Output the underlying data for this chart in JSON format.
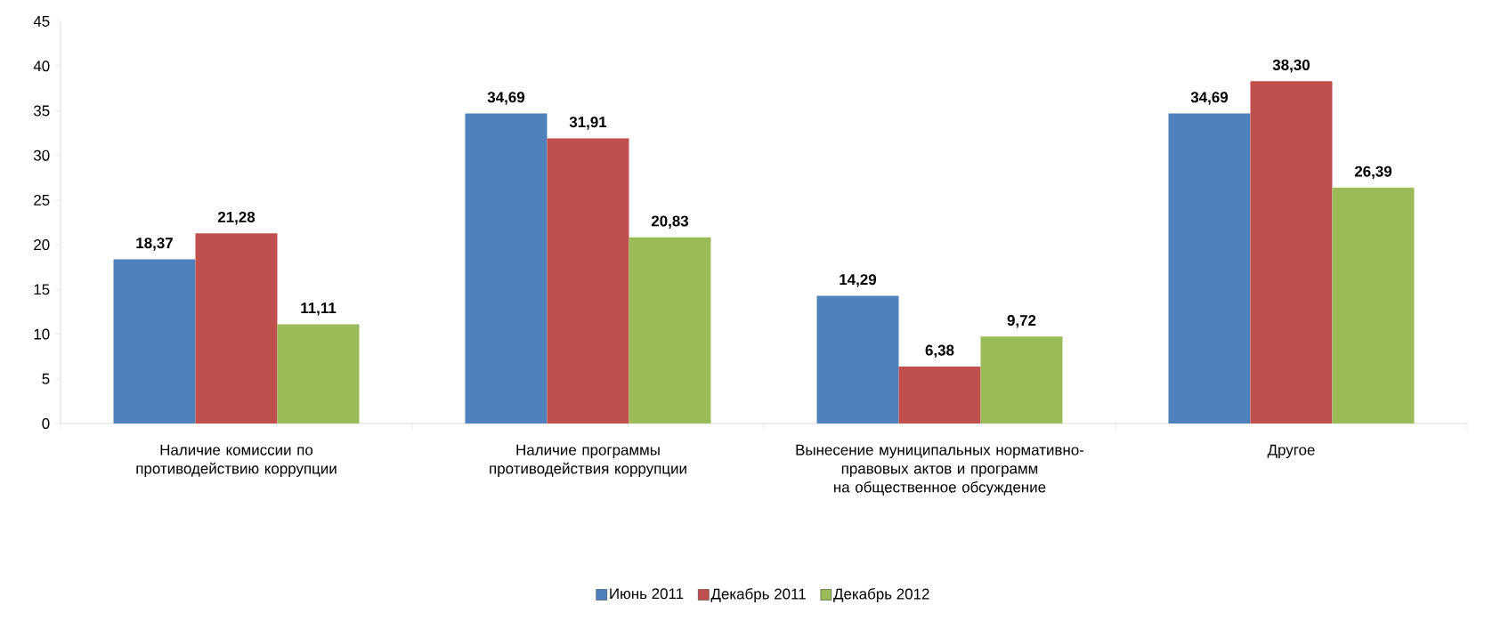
{
  "chart_data": {
    "type": "bar",
    "categories": [
      "Наличие комиссии по противодействию коррупции",
      "Наличие программы противодействия коррупции",
      "Вынесение муниципальных нормативно-правовых актов и программ на общественное обсуждение",
      "Другое"
    ],
    "series": [
      {
        "name": "Июнь 2011",
        "color": "#4f81bd",
        "values": [
          18.37,
          34.69,
          14.29,
          34.69
        ],
        "value_labels": [
          "18,37",
          "34,69",
          "14,29",
          "34,69"
        ]
      },
      {
        "name": "Декабрь 2011",
        "color": "#c0504d",
        "values": [
          21.28,
          31.91,
          6.38,
          38.3
        ],
        "value_labels": [
          "21,28",
          "31,91",
          "6,38",
          "38,30"
        ]
      },
      {
        "name": "Декабрь 2012",
        "color": "#9bbb59",
        "values": [
          11.11,
          20.83,
          9.72,
          26.39
        ],
        "value_labels": [
          "11,11",
          "20,83",
          "9,72",
          "26,39"
        ]
      }
    ],
    "ylim": [
      0,
      45
    ],
    "yticks": [
      0,
      5,
      10,
      15,
      20,
      25,
      30,
      35,
      40,
      45
    ],
    "legend": "bottom"
  }
}
